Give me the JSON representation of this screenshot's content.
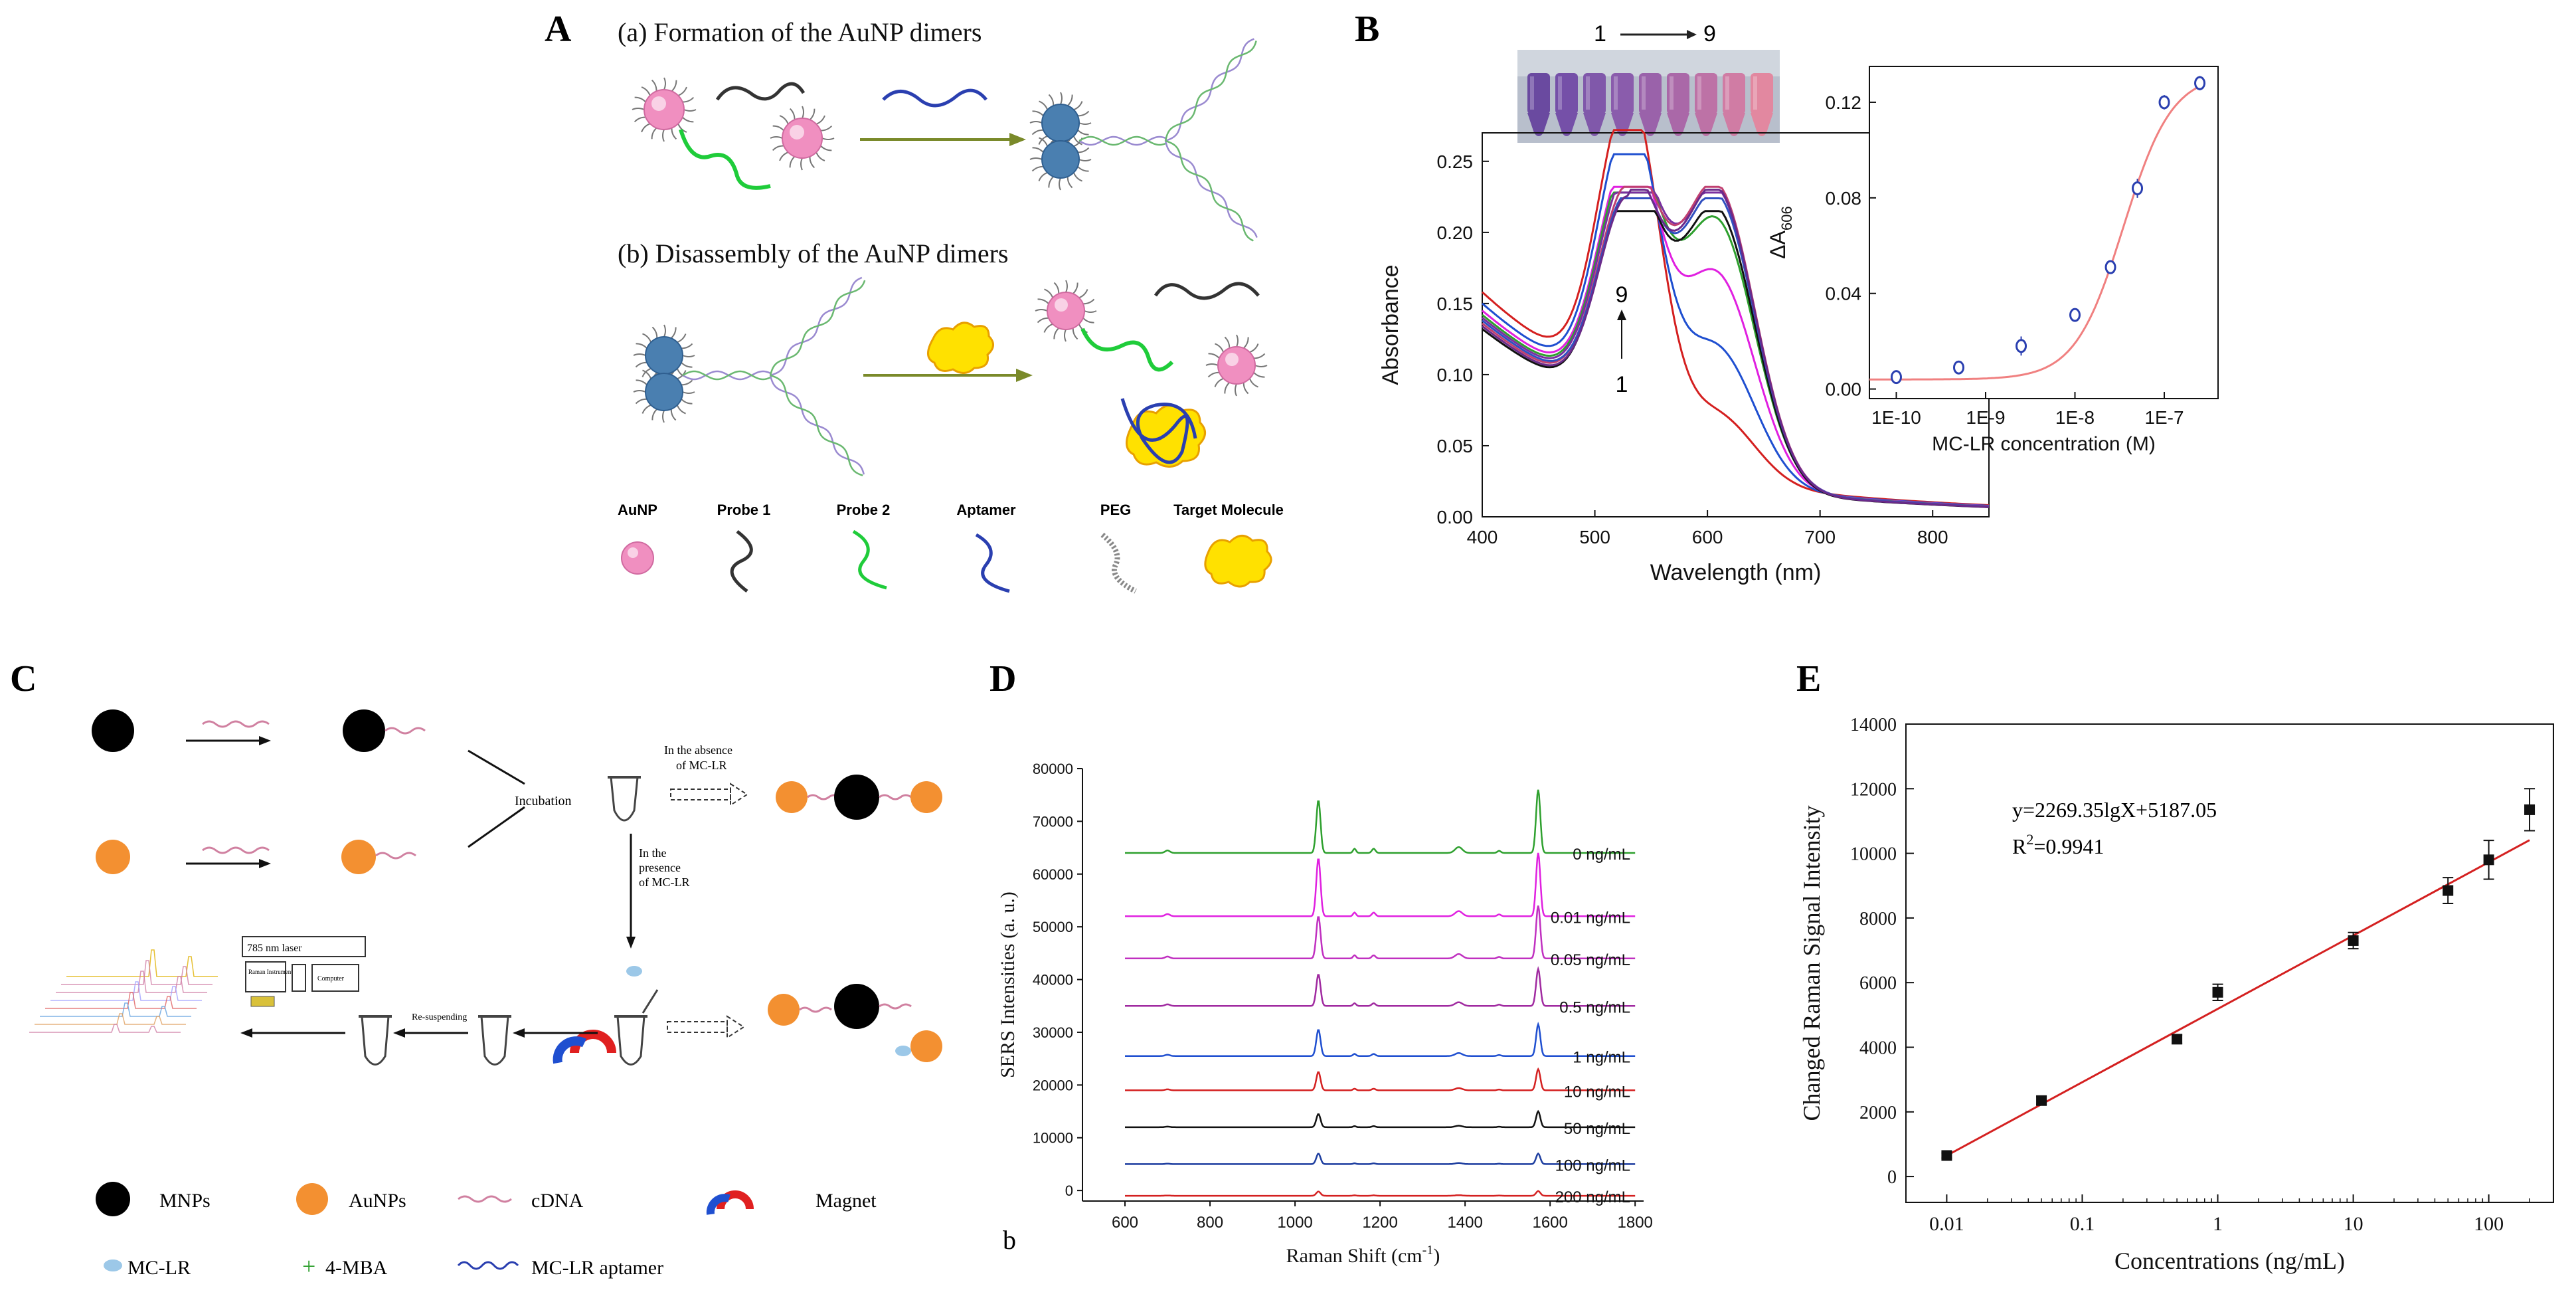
{
  "panels": {
    "A": {
      "letter": "A",
      "title_a": "(a) Formation of the AuNP dimers",
      "title_b": "(b) Disassembly of the AuNP dimers",
      "legend": [
        "AuNP",
        "Probe 1",
        "Probe 2",
        "Aptamer",
        "PEG",
        "Target Molecule"
      ]
    },
    "B": {
      "letter": "B",
      "tube_label_start": "1",
      "tube_label_end": "9",
      "arrow_label_top": "9",
      "arrow_label_bottom": "1"
    },
    "C": {
      "letter": "C",
      "incubation": "Incubation",
      "absence_line1": "In the absence",
      "absence_line2": "of MC-LR",
      "presence_line1": "In the",
      "presence_line2": "presence",
      "presence_line3": "of MC-LR",
      "laser": "785 nm laser",
      "raman_instrument": "Raman Instrument",
      "computer": "Computer",
      "resuspending": "Re-suspending",
      "legend": [
        "MNPs",
        "AuNPs",
        "cDNA",
        "Magnet",
        "MC-LR",
        "4-MBA",
        "MC-LR aptamer"
      ]
    },
    "D": {
      "letter": "D",
      "sublabel": "b"
    },
    "E": {
      "letter": "E",
      "equation": "y=2269.35lgX+5187.05",
      "r2_prefix": "R",
      "r2_sup": "2",
      "r2_value": "=0.9941"
    }
  },
  "colors": {
    "aunp_pink": "#f08fc0",
    "aunp_blue": "#4a7fb0",
    "probe1": "#333333",
    "probe2": "#1fcc3a",
    "aptamer": "#2a3fb0",
    "target": "#ffe100",
    "mnp": "#000000",
    "aunps_orange": "#f39031",
    "magnet_red": "#e02020",
    "magnet_blue": "#1f4fd0"
  },
  "chart_data": [
    {
      "id": "B-main",
      "type": "line",
      "xlabel": "Wavelength (nm)",
      "ylabel": "Absorbance",
      "xlim": [
        400,
        850
      ],
      "ylim": [
        0,
        0.27
      ],
      "xticks": [
        400,
        500,
        600,
        700,
        800
      ],
      "yticks": [
        0.0,
        0.05,
        0.1,
        0.15,
        0.2,
        0.25
      ],
      "ytick_labels": [
        "0.00",
        "0.05",
        "0.10",
        "0.15",
        "0.20",
        "0.25"
      ],
      "series": [
        {
          "color": "#d42020",
          "peak1": 0.262,
          "peak2": 0.05,
          "base400": 0.158
        },
        {
          "color": "#1f4fd0",
          "peak1": 0.245,
          "peak2": 0.1,
          "base400": 0.15
        },
        {
          "color": "#e020e0",
          "peak1": 0.222,
          "peak2": 0.155,
          "base400": 0.145
        },
        {
          "color": "#2ea02e",
          "peak1": 0.218,
          "peak2": 0.195,
          "base400": 0.142
        },
        {
          "color": "#7a2fa0",
          "peak1": 0.212,
          "peak2": 0.218,
          "base400": 0.14
        },
        {
          "color": "#111111",
          "peak1": 0.2,
          "peak2": 0.205,
          "base400": 0.132
        },
        {
          "color": "#c04070",
          "peak1": 0.204,
          "peak2": 0.222,
          "base400": 0.136
        },
        {
          "color": "#3050c0",
          "peak1": 0.198,
          "peak2": 0.214,
          "base400": 0.138
        },
        {
          "color": "#6a2a8a",
          "peak1": 0.196,
          "peak2": 0.22,
          "base400": 0.134
        }
      ]
    },
    {
      "id": "B-inset",
      "type": "scatter",
      "xlabel": "MC-LR concentration (M)",
      "ylabel_main": "ΔA",
      "ylabel_sub": "606",
      "x_log": true,
      "xticks": [
        1e-10,
        1e-09,
        1e-08,
        1e-07
      ],
      "xtick_labels": [
        "1E-10",
        "1E-9",
        "1E-8",
        "1E-7"
      ],
      "ylim": [
        -0.004,
        0.135
      ],
      "yticks": [
        0.0,
        0.04,
        0.08,
        0.12
      ],
      "ytick_labels": [
        "0.00",
        "0.04",
        "0.08",
        "0.12"
      ],
      "x": [
        1e-10,
        5e-10,
        2.5e-09,
        1e-08,
        2.5e-08,
        5e-08,
        1e-07,
        2.5e-07
      ],
      "y": [
        0.005,
        0.009,
        0.018,
        0.031,
        0.051,
        0.084,
        0.12,
        0.128
      ],
      "yerr": [
        0.002,
        0.002,
        0.004,
        0.002,
        0.002,
        0.004,
        0.003,
        0.003
      ]
    },
    {
      "id": "D",
      "type": "line",
      "xlabel": "Raman Shift (cm",
      "xlabel_sup": "-1",
      "xlabel_end": ")",
      "ylabel": "SERS Intensities (a. u.)",
      "xlim": [
        500,
        1820
      ],
      "ylim": [
        -2000,
        80000
      ],
      "xticks": [
        600,
        800,
        1000,
        1200,
        1400,
        1600,
        1800
      ],
      "yticks": [
        0,
        10000,
        20000,
        30000,
        40000,
        50000,
        60000,
        70000,
        80000
      ],
      "series": [
        {
          "name": "0 ng/mL",
          "color": "#2ea02e",
          "baseline": 64000,
          "peak1055": 10000,
          "peak1570": 12000,
          "small": 800
        },
        {
          "name": "0.01 ng/mL",
          "color": "#e020e0",
          "baseline": 52000,
          "peak1055": 11000,
          "peak1570": 12000,
          "small": 700
        },
        {
          "name": "0.05 ng/mL",
          "color": "#c030c0",
          "baseline": 44000,
          "peak1055": 8000,
          "peak1570": 10000,
          "small": 600
        },
        {
          "name": "0.5 ng/mL",
          "color": "#a02aa0",
          "baseline": 35000,
          "peak1055": 6000,
          "peak1570": 7000,
          "small": 500
        },
        {
          "name": "1 ng/mL",
          "color": "#1f4fd0",
          "baseline": 25500,
          "peak1055": 5000,
          "peak1570": 6000,
          "small": 400
        },
        {
          "name": "10 ng/mL",
          "color": "#d42020",
          "baseline": 19000,
          "peak1055": 3500,
          "peak1570": 4000,
          "small": 300
        },
        {
          "name": "50 ng/mL",
          "color": "#111111",
          "baseline": 12000,
          "peak1055": 2500,
          "peak1570": 3000,
          "small": 200
        },
        {
          "name": "100 ng/mL",
          "color": "#1f3fa0",
          "baseline": 5000,
          "peak1055": 2000,
          "peak1570": 2000,
          "small": 150
        },
        {
          "name": "200 ng/mL",
          "color": "#d42020",
          "baseline": -1000,
          "peak1055": 800,
          "peak1570": 900,
          "small": 80
        }
      ]
    },
    {
      "id": "E",
      "type": "scatter",
      "xlabel": "Concentrations (ng/mL)",
      "ylabel": "Changed Raman Signal Intensity",
      "x_log": true,
      "xlim": [
        0.005,
        300
      ],
      "ylim": [
        -800,
        14000
      ],
      "xticks": [
        0.01,
        0.1,
        1,
        10,
        100
      ],
      "xtick_labels": [
        "0.01",
        "0.1",
        "1",
        "10",
        "100"
      ],
      "yticks": [
        0,
        2000,
        4000,
        6000,
        8000,
        10000,
        12000,
        14000
      ],
      "x": [
        0.01,
        0.05,
        0.5,
        1,
        10,
        50,
        100,
        200
      ],
      "y": [
        650,
        2350,
        4250,
        5700,
        7300,
        8850,
        9800,
        11350
      ],
      "yerr": [
        80,
        120,
        130,
        250,
        250,
        400,
        600,
        650
      ],
      "fit": {
        "slope": 2269.35,
        "intercept": 5187.05,
        "x_range": [
          0.01,
          200
        ]
      }
    }
  ]
}
